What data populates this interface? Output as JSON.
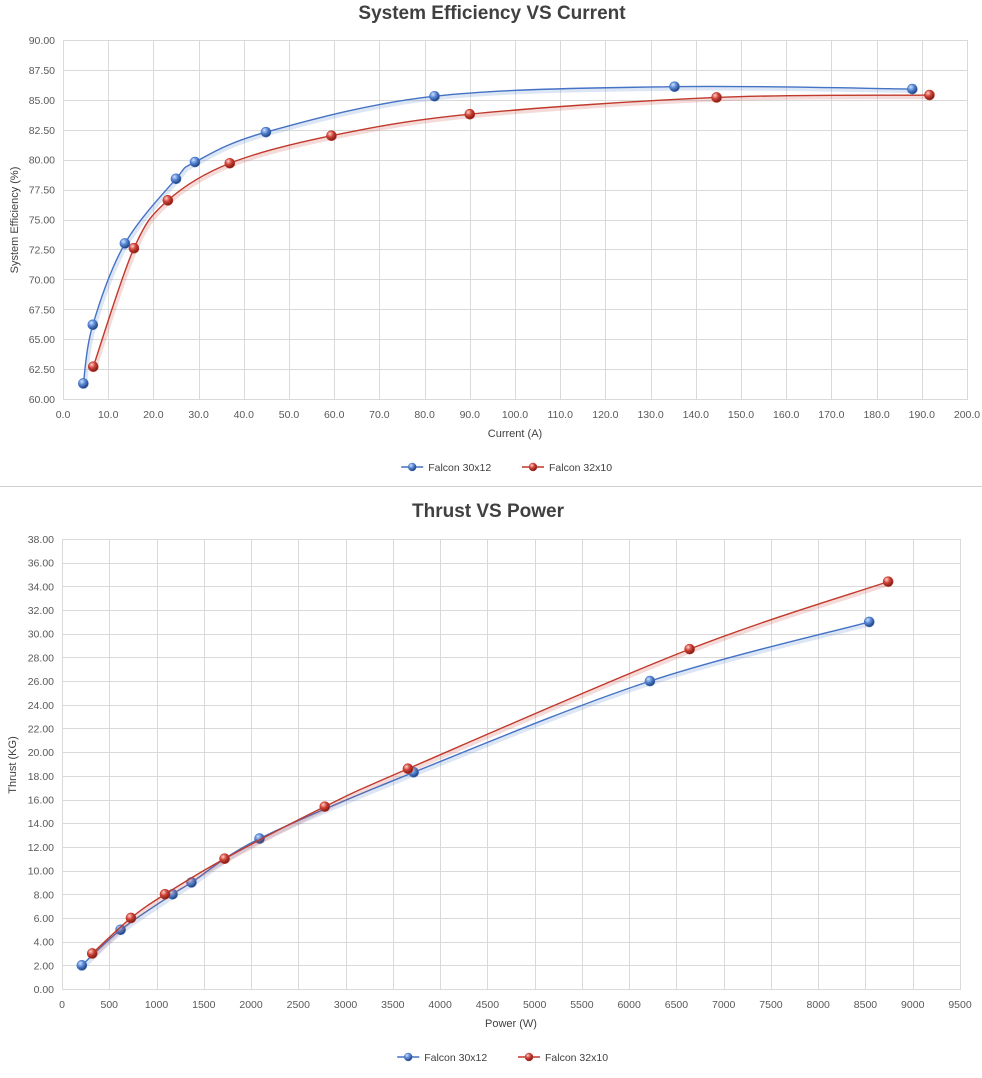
{
  "colors": {
    "series_blue": "#4472c4",
    "series_red": "#c0392b",
    "title": "#404040",
    "gridline": "#d9d9d9"
  },
  "chart_data": [
    {
      "type": "scatter",
      "title": "System Efficiency VS Current",
      "xlabel": "Current (A)",
      "ylabel": "System Efficiency (%)",
      "xlim": [
        0,
        200
      ],
      "ylim": [
        60,
        90
      ],
      "xticks": [
        0,
        10,
        20,
        30,
        40,
        50,
        60,
        70,
        80,
        90,
        100,
        110,
        120,
        130,
        140,
        150,
        160,
        170,
        180,
        190,
        200
      ],
      "yticks": [
        60,
        62.5,
        65,
        67.5,
        70,
        72.5,
        75,
        77.5,
        80,
        82.5,
        85,
        87.5,
        90
      ],
      "x_decimals": 1,
      "y_decimals": 2,
      "grid": true,
      "legend_position": "bottom",
      "series": [
        {
          "name": "Falcon 30x12",
          "color": "#4472c4",
          "x": [
            4.5,
            6.6,
            13.7,
            25.0,
            29.2,
            44.9,
            82.2,
            135.3,
            187.9
          ],
          "y": [
            61.3,
            66.2,
            73.0,
            78.4,
            79.8,
            82.3,
            85.3,
            86.1,
            85.9
          ]
        },
        {
          "name": "Falcon 32x10",
          "color": "#c0392b",
          "x": [
            6.7,
            15.7,
            23.2,
            36.9,
            59.4,
            90.0,
            144.6,
            191.7
          ],
          "y": [
            62.7,
            72.6,
            76.6,
            79.7,
            82.0,
            83.8,
            85.2,
            85.4
          ]
        }
      ]
    },
    {
      "type": "scatter",
      "title": "Thrust VS Power",
      "xlabel": "Power (W)",
      "ylabel": "Thrust (KG)",
      "xlim": [
        0,
        9500
      ],
      "ylim": [
        0,
        38
      ],
      "xticks": [
        0,
        500,
        1000,
        1500,
        2000,
        2500,
        3000,
        3500,
        4000,
        4500,
        5000,
        5500,
        6000,
        6500,
        7000,
        7500,
        8000,
        8500,
        9000,
        9500
      ],
      "yticks": [
        0,
        2,
        4,
        6,
        8,
        10,
        12,
        14,
        16,
        18,
        20,
        22,
        24,
        26,
        28,
        30,
        32,
        34,
        36,
        38
      ],
      "x_decimals": 0,
      "y_decimals": 2,
      "grid": true,
      "legend_position": "bottom",
      "series": [
        {
          "name": "Falcon 30x12",
          "color": "#4472c4",
          "x": [
            210,
            620,
            1170,
            1370,
            2090,
            3720,
            6220,
            8540
          ],
          "y": [
            2.0,
            5.0,
            8.0,
            9.0,
            12.7,
            18.3,
            26.0,
            31.0
          ]
        },
        {
          "name": "Falcon 32x10",
          "color": "#c0392b",
          "x": [
            320,
            730,
            1090,
            1720,
            2780,
            3660,
            6640,
            8740
          ],
          "y": [
            3.0,
            6.0,
            8.0,
            11.0,
            15.4,
            18.6,
            28.7,
            34.4
          ]
        }
      ]
    }
  ]
}
